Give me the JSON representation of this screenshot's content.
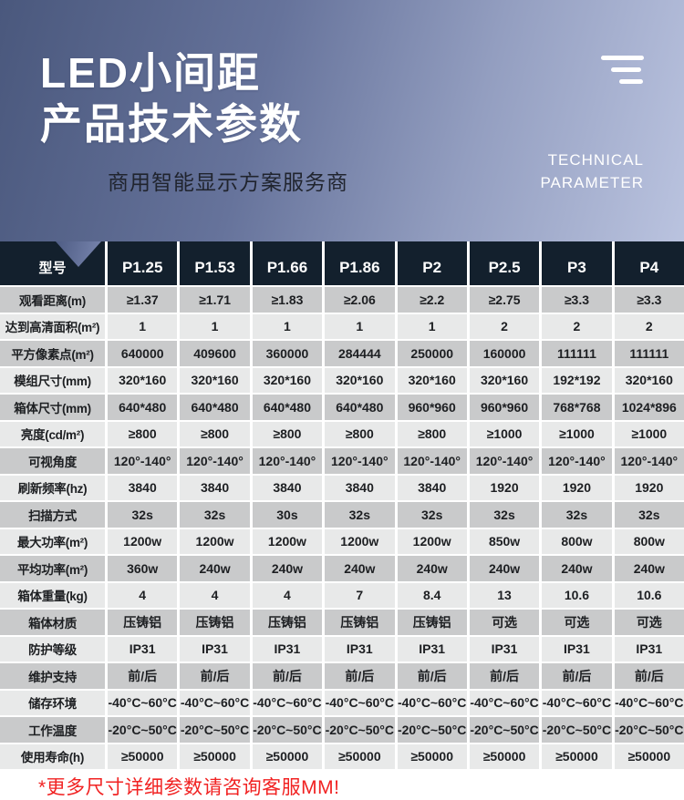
{
  "hero": {
    "title_line1": "LED小间距",
    "title_line2": "产品技术参数",
    "subtitle": "商用智能显示方案服务商",
    "tagline_line1": "TECHNICAL",
    "tagline_line2": "PARAMETER"
  },
  "table": {
    "corner_label": "型号",
    "columns": [
      "P1.25",
      "P1.53",
      "P1.66",
      "P1.86",
      "P2",
      "P2.5",
      "P3",
      "P4"
    ],
    "rows": [
      {
        "label": "观看距离(m)",
        "values": [
          "≥1.37",
          "≥1.71",
          "≥1.83",
          "≥2.06",
          "≥2.2",
          "≥2.75",
          "≥3.3",
          "≥3.3"
        ]
      },
      {
        "label": "达到高清面积(m²)",
        "values": [
          "1",
          "1",
          "1",
          "1",
          "1",
          "2",
          "2",
          "2"
        ]
      },
      {
        "label": "平方像素点(m²)",
        "values": [
          "640000",
          "409600",
          "360000",
          "284444",
          "250000",
          "160000",
          "111111",
          "111111"
        ]
      },
      {
        "label": "模组尺寸(mm)",
        "values": [
          "320*160",
          "320*160",
          "320*160",
          "320*160",
          "320*160",
          "320*160",
          "192*192",
          "320*160"
        ]
      },
      {
        "label": "箱体尺寸(mm)",
        "values": [
          "640*480",
          "640*480",
          "640*480",
          "640*480",
          "960*960",
          "960*960",
          "768*768",
          "1024*896"
        ]
      },
      {
        "label": "亮度(cd/m²)",
        "values": [
          "≥800",
          "≥800",
          "≥800",
          "≥800",
          "≥800",
          "≥1000",
          "≥1000",
          "≥1000"
        ]
      },
      {
        "label": "可视角度",
        "values": [
          "120°-140°",
          "120°-140°",
          "120°-140°",
          "120°-140°",
          "120°-140°",
          "120°-140°",
          "120°-140°",
          "120°-140°"
        ]
      },
      {
        "label": "刷新频率(hz)",
        "values": [
          "3840",
          "3840",
          "3840",
          "3840",
          "3840",
          "1920",
          "1920",
          "1920"
        ]
      },
      {
        "label": "扫描方式",
        "values": [
          "32s",
          "32s",
          "30s",
          "32s",
          "32s",
          "32s",
          "32s",
          "32s"
        ]
      },
      {
        "label": "最大功率(m²)",
        "values": [
          "1200w",
          "1200w",
          "1200w",
          "1200w",
          "1200w",
          "850w",
          "800w",
          "800w"
        ]
      },
      {
        "label": "平均功率(m²)",
        "values": [
          "360w",
          "240w",
          "240w",
          "240w",
          "240w",
          "240w",
          "240w",
          "240w"
        ]
      },
      {
        "label": "箱体重量(kg)",
        "values": [
          "4",
          "4",
          "4",
          "7",
          "8.4",
          "13",
          "10.6",
          "10.6"
        ]
      },
      {
        "label": "箱体材质",
        "values": [
          "压铸铝",
          "压铸铝",
          "压铸铝",
          "压铸铝",
          "压铸铝",
          "可选",
          "可选",
          "可选"
        ]
      },
      {
        "label": "防护等级",
        "values": [
          "IP31",
          "IP31",
          "IP31",
          "IP31",
          "IP31",
          "IP31",
          "IP31",
          "IP31"
        ]
      },
      {
        "label": "维护支持",
        "values": [
          "前/后",
          "前/后",
          "前/后",
          "前/后",
          "前/后",
          "前/后",
          "前/后",
          "前/后"
        ]
      },
      {
        "label": "储存环境",
        "values": [
          "-40°C~60°C",
          "-40°C~60°C",
          "-40°C~60°C",
          "-40°C~60°C",
          "-40°C~60°C",
          "-40°C~60°C",
          "-40°C~60°C",
          "-40°C~60°C"
        ]
      },
      {
        "label": "工作温度",
        "values": [
          "-20°C~50°C",
          "-20°C~50°C",
          "-20°C~50°C",
          "-20°C~50°C",
          "-20°C~50°C",
          "-20°C~50°C",
          "-20°C~50°C",
          "-20°C~50°C"
        ]
      },
      {
        "label": "使用寿命(h)",
        "values": [
          "≥50000",
          "≥50000",
          "≥50000",
          "≥50000",
          "≥50000",
          "≥50000",
          "≥50000",
          "≥50000"
        ]
      }
    ]
  },
  "footer": {
    "note": "*更多尺寸详细参数请咨询客服MM!"
  },
  "colors": {
    "accent_red": "#f12222",
    "table_header_bg": "#13202d",
    "row_shade_dark": "#c9cacb",
    "row_shade_light": "#e8e9e9",
    "hero_gradient_from": "#4a587d",
    "hero_gradient_to": "#bac3df"
  }
}
